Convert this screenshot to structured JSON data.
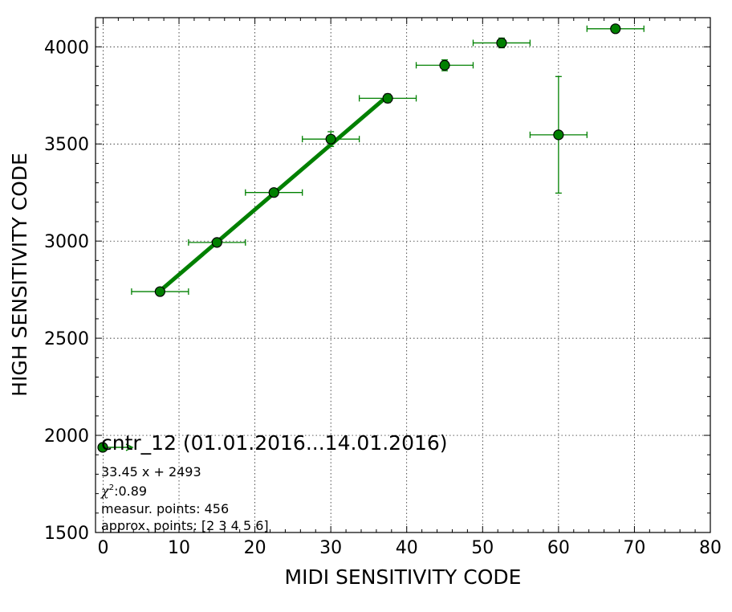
{
  "chart_data": {
    "type": "scatter",
    "xlabel": "MIDI SENSITIVITY CODE",
    "ylabel": "HIGH SENSITIVITY CODE",
    "xlim": [
      -1,
      80
    ],
    "ylim": [
      1500,
      4150
    ],
    "x_ticks": [
      0,
      10,
      20,
      30,
      40,
      50,
      60,
      70,
      80
    ],
    "y_ticks": [
      1500,
      2000,
      2500,
      3000,
      3500,
      4000
    ],
    "grid": true,
    "colors": {
      "series": "#008000",
      "marker_edge": "#000000"
    },
    "points": [
      {
        "x": 7.5,
        "y": 2740,
        "xerr": 3.75,
        "yerr": 10
      },
      {
        "x": 15,
        "y": 2993,
        "xerr": 3.75,
        "yerr": 15
      },
      {
        "x": 22.5,
        "y": 3250,
        "xerr": 3.75,
        "yerr": 15
      },
      {
        "x": 30,
        "y": 3525,
        "xerr": 3.75,
        "yerr": 38
      },
      {
        "x": 37.5,
        "y": 3735,
        "xerr": 3.75,
        "yerr": 22
      },
      {
        "x": 45,
        "y": 3905,
        "xerr": 3.75,
        "yerr": 28
      },
      {
        "x": 52.5,
        "y": 4020,
        "xerr": 3.75,
        "yerr": 25
      },
      {
        "x": 60,
        "y": 3547,
        "xerr": 3.75,
        "yerr": 300
      },
      {
        "x": 67.5,
        "y": 4093,
        "xerr": 3.75,
        "yerr": 12
      }
    ],
    "fit": {
      "slope": 33.45,
      "intercept": 2493,
      "x_range": [
        7.5,
        37.5
      ]
    },
    "legend": {
      "title": "cntr_12 (01.01.2016...14.01.2016)",
      "placement": "bottom-left",
      "lines": [
        "33.45 x + 2493",
        ":0.89",
        "measur. points: 456",
        "approx. points: [2 3 4 5 6]"
      ],
      "chi_symbol": "χ",
      "chi_superscript": "2"
    }
  }
}
